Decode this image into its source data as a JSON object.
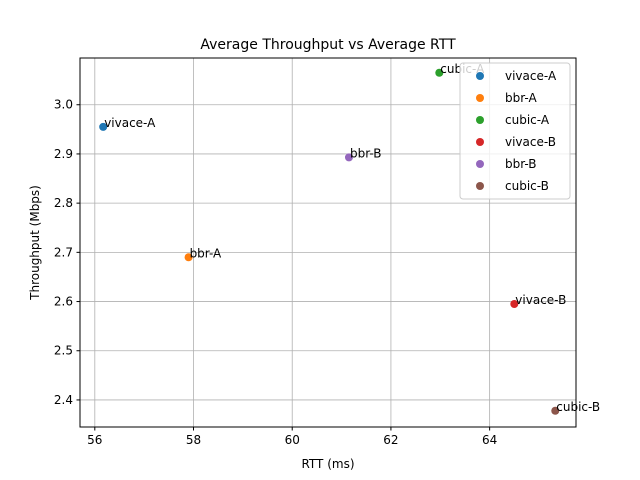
{
  "chart_data": {
    "type": "scatter",
    "title": "Average Throughput vs Average RTT",
    "xlabel": "RTT (ms)",
    "ylabel": "Throughput (Mbps)",
    "xlim": [
      55.7,
      65.75
    ],
    "ylim": [
      2.345,
      3.095
    ],
    "xticks": [
      56,
      58,
      60,
      62,
      64
    ],
    "yticks": [
      2.4,
      2.5,
      2.6,
      2.7,
      2.8,
      2.9,
      3.0
    ],
    "grid": true,
    "legend_position": "top-right",
    "series": [
      {
        "name": "vivace-A",
        "color": "#1f77b4",
        "x": 56.17,
        "y": 2.955,
        "annotation": "vivace-A"
      },
      {
        "name": "bbr-A",
        "color": "#ff7f0e",
        "x": 57.9,
        "y": 2.69,
        "annotation": "bbr-A"
      },
      {
        "name": "cubic-A",
        "color": "#2ca02c",
        "x": 62.98,
        "y": 3.065,
        "annotation": "cubic-A"
      },
      {
        "name": "vivace-B",
        "color": "#d62728",
        "x": 64.5,
        "y": 2.595,
        "annotation": "vivace-B"
      },
      {
        "name": "bbr-B",
        "color": "#9467bd",
        "x": 61.15,
        "y": 2.893,
        "annotation": "bbr-B"
      },
      {
        "name": "cubic-B",
        "color": "#8c564b",
        "x": 65.33,
        "y": 2.378,
        "annotation": "cubic-B"
      }
    ]
  }
}
